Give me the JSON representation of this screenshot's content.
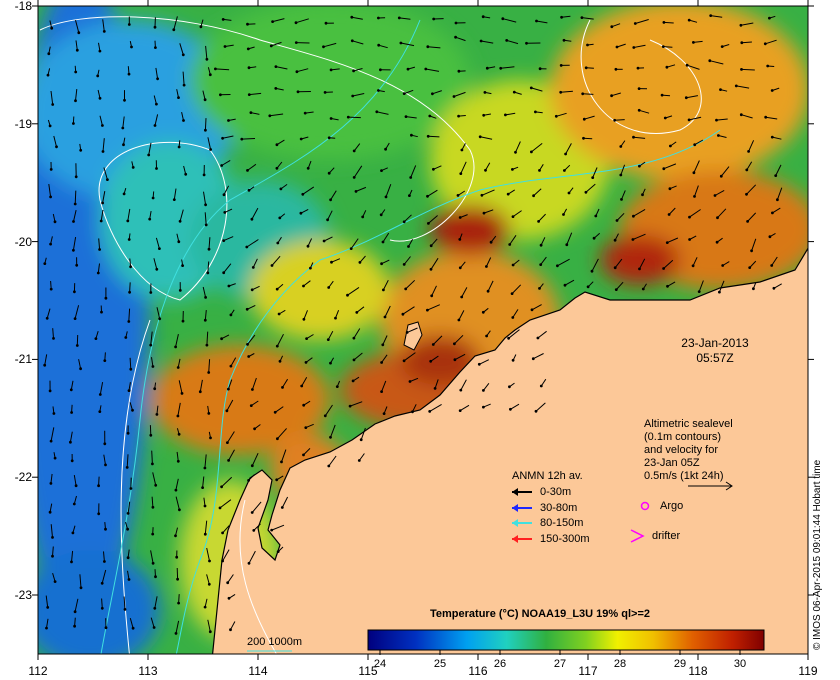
{
  "map": {
    "lat_ticks": [
      "-18",
      "-19",
      "-20",
      "-21",
      "-22",
      "-23"
    ],
    "lon_ticks": [
      "112",
      "113",
      "114",
      "115",
      "116",
      "117",
      "118",
      "119"
    ],
    "lat_range": [
      -23.55,
      -18.0
    ],
    "lon_range": [
      112.0,
      119.0
    ]
  },
  "annotations": {
    "date": "23-Jan-2013",
    "time": "05:57Z",
    "sealevel_lines": [
      "Altimetric sealevel",
      "(0.1m contours)",
      "and velocity for",
      "23-Jan 05Z",
      "0.5m/s (1kt 24h)"
    ],
    "scale_label": "200  1000m",
    "credit": "© IMOS 06-Apr-2015 09:01:44 Hobart time"
  },
  "legend": {
    "title": "ANMN 12h av.",
    "depths": [
      {
        "label": "0-30m",
        "color": "#000000"
      },
      {
        "label": "30-80m",
        "color": "#1e28ff"
      },
      {
        "label": "80-150m",
        "color": "#40e0e0"
      },
      {
        "label": "150-300m",
        "color": "#ff2020"
      }
    ],
    "argo_label": "Argo",
    "drifter_label": "drifter",
    "argo_color": "#ff00ff",
    "drifter_color": "#ff00ff"
  },
  "colorbar": {
    "title": "Temperature (°C) NOAA19_L3U 19% ql>=2",
    "ticks": [
      "24",
      "25",
      "26",
      "27",
      "28",
      "29",
      "30"
    ],
    "range": [
      23.7,
      30.3
    ]
  },
  "colors": {
    "land": "#fcc898",
    "ocean_warm": "#e07a10",
    "ocean_cool": "#2a6fd0"
  }
}
